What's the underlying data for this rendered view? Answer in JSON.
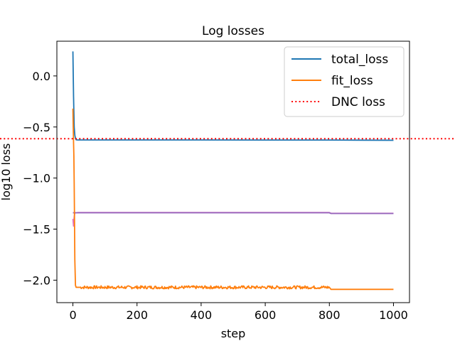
{
  "chart_data": {
    "type": "line",
    "title": "Log losses",
    "xlabel": "step",
    "ylabel": "log10 loss",
    "xlim": [
      -50,
      1050
    ],
    "ylim": [
      -2.22,
      0.34
    ],
    "xticks": [
      0,
      200,
      400,
      600,
      800,
      1000
    ],
    "yticks": [
      0.0,
      -0.5,
      -1.0,
      -1.5,
      -2.0
    ],
    "xtick_labels": [
      "0",
      "200",
      "400",
      "600",
      "800",
      "1000"
    ],
    "ytick_labels": [
      "0.0",
      "−0.5",
      "−1.0",
      "−1.5",
      "−2.0"
    ],
    "grid": false,
    "legend_position": "top-right",
    "series": [
      {
        "name": "total_loss",
        "color": "#1f77b4",
        "style": "solid",
        "x": [
          0,
          2,
          4,
          6,
          8,
          10,
          15,
          20,
          50,
          100,
          200,
          400,
          600,
          800,
          1000
        ],
        "y": [
          0.24,
          -0.2,
          -0.5,
          -0.58,
          -0.61,
          -0.625,
          -0.627,
          -0.627,
          -0.627,
          -0.627,
          -0.627,
          -0.627,
          -0.628,
          -0.628,
          -0.63
        ]
      },
      {
        "name": "fit_loss",
        "color": "#ff7f0e",
        "style": "solid",
        "x": [
          0,
          1,
          2,
          3,
          4,
          5,
          6,
          8,
          10,
          15,
          20,
          800,
          805,
          1000
        ],
        "y": [
          -0.32,
          -0.5,
          -0.65,
          -0.78,
          -1.05,
          -1.4,
          -1.8,
          -2.05,
          -2.07,
          -2.07,
          -2.07,
          -2.07,
          -2.09,
          -2.09
        ],
        "noise_range": [
          20,
          800
        ],
        "noise_amplitude": 0.015
      },
      {
        "name": "",
        "color": "#e377c2",
        "style": "solid",
        "x": [
          0,
          2,
          4,
          6,
          8,
          10,
          15,
          20,
          100,
          400,
          800,
          805,
          1000
        ],
        "y": [
          -1.4,
          -1.47,
          -1.38,
          -1.34,
          -1.34,
          -1.34,
          -1.338,
          -1.338,
          -1.338,
          -1.338,
          -1.338,
          -1.345,
          -1.345
        ]
      },
      {
        "name": "",
        "color": "#9467bd",
        "style": "solid",
        "x": [
          0,
          10,
          100,
          400,
          800,
          805,
          1000
        ],
        "y": [
          -1.34,
          -1.34,
          -1.34,
          -1.34,
          -1.34,
          -1.347,
          -1.347
        ]
      },
      {
        "name": "DNC loss",
        "color": "#ff0000",
        "style": "dotted",
        "hline": -0.615
      }
    ]
  }
}
